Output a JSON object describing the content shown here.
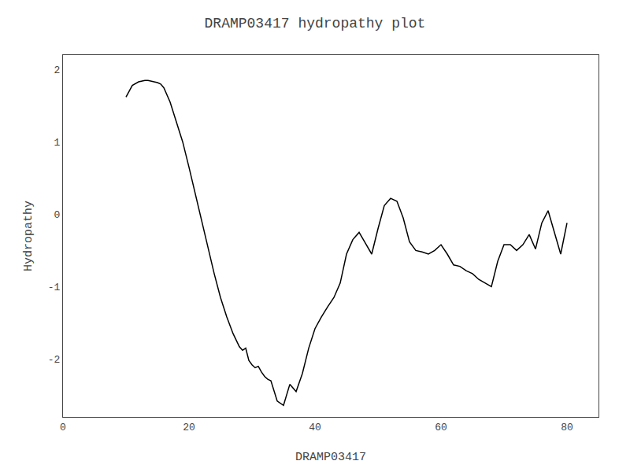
{
  "chart_data": {
    "type": "line",
    "title": "DRAMP03417 hydropathy plot",
    "xlabel": "DRAMP03417",
    "ylabel": "Hydropathy",
    "x": [
      10,
      11,
      12,
      13,
      13.5,
      14,
      14.5,
      15,
      15.5,
      16,
      17,
      18,
      19,
      20,
      21,
      22,
      23,
      24,
      25,
      26,
      27,
      28,
      28.5,
      29,
      29.5,
      30,
      30.5,
      31,
      31.5,
      32,
      32.5,
      33,
      34,
      35,
      36,
      37,
      38,
      39,
      40,
      41,
      42,
      43,
      44,
      45,
      46,
      47,
      48,
      49,
      50,
      51,
      52,
      53,
      54,
      55,
      56,
      57,
      58,
      59,
      60,
      61,
      62,
      63,
      64,
      65,
      66,
      67,
      68,
      69,
      70,
      71,
      72,
      73,
      74,
      75,
      76,
      77,
      78,
      79,
      80
    ],
    "values": [
      1.62,
      1.78,
      1.83,
      1.85,
      1.85,
      1.84,
      1.83,
      1.82,
      1.8,
      1.75,
      1.55,
      1.28,
      1.0,
      0.65,
      0.28,
      -0.08,
      -0.45,
      -0.82,
      -1.15,
      -1.42,
      -1.65,
      -1.83,
      -1.88,
      -1.85,
      -2.02,
      -2.08,
      -2.12,
      -2.1,
      -2.18,
      -2.24,
      -2.28,
      -2.3,
      -2.58,
      -2.64,
      -2.35,
      -2.45,
      -2.2,
      -1.85,
      -1.58,
      -1.42,
      -1.28,
      -1.15,
      -0.95,
      -0.55,
      -0.35,
      -0.25,
      -0.4,
      -0.55,
      -0.2,
      0.12,
      0.22,
      0.18,
      -0.05,
      -0.38,
      -0.5,
      -0.52,
      -0.55,
      -0.5,
      -0.42,
      -0.55,
      -0.7,
      -0.72,
      -0.78,
      -0.82,
      -0.9,
      -0.95,
      -1.0,
      -0.65,
      -0.42,
      -0.42,
      -0.5,
      -0.42,
      -0.28,
      -0.48,
      -0.12,
      0.05,
      -0.25,
      -0.55,
      -0.12
    ],
    "color": "#000000",
    "xlim": [
      0,
      85
    ],
    "ylim": [
      -2.8,
      2.2
    ],
    "xticks": [
      0,
      20,
      40,
      60,
      80
    ],
    "yticks": [
      -2,
      -1,
      0,
      1,
      2
    ],
    "grid": false
  }
}
